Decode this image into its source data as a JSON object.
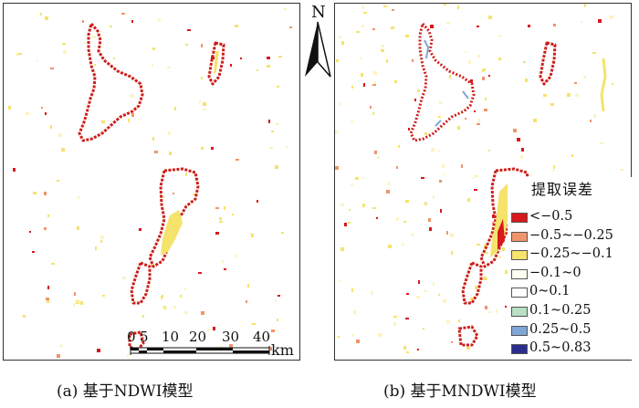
{
  "north": {
    "label": "N",
    "icon": "north-arrow-icon"
  },
  "panels": [
    {
      "id": "a",
      "caption": "(a) 基于NDWI模型"
    },
    {
      "id": "b",
      "caption": "(b) 基于MNDWI模型"
    }
  ],
  "scale_bar": {
    "ticks": [
      "0",
      "5",
      "10",
      "20",
      "30",
      "40"
    ],
    "unit": "km"
  },
  "legend": {
    "title": "提取误差",
    "items": [
      {
        "label": "<−0.5",
        "color": "#d7191c"
      },
      {
        "label": "−0.5~−0.25",
        "color": "#f0956a"
      },
      {
        "label": "−0.25~−0.1",
        "color": "#f5e36b"
      },
      {
        "label": "−0.1~0",
        "color": "#fdfdf0"
      },
      {
        "label": "0~0.1",
        "color": "#ffffff"
      },
      {
        "label": "0.1~0.25",
        "color": "#b9e0c3"
      },
      {
        "label": "0.25~0.5",
        "color": "#7fa6d6"
      },
      {
        "label": "0.5~0.83",
        "color": "#2b2d8c"
      }
    ]
  }
}
